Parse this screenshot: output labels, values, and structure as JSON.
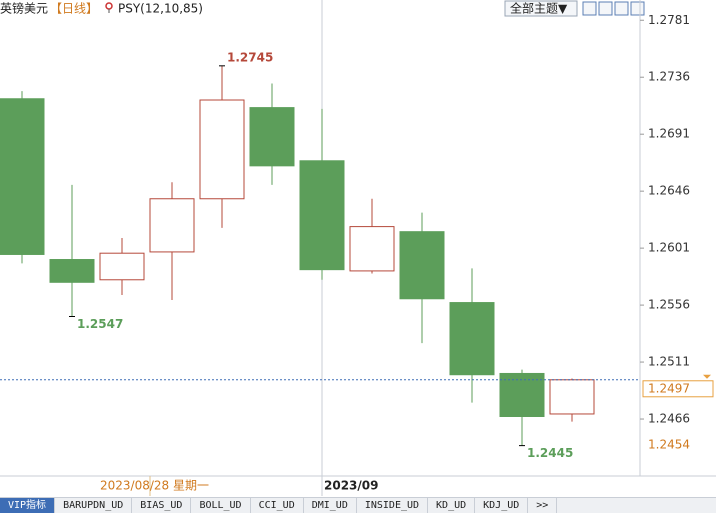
{
  "toolbar": {
    "title": "英镑美元",
    "period": "【日线】",
    "indicator": "PSY(12,10,85)",
    "theme_button": "全部主题▼"
  },
  "tabs": [
    "VIP指标",
    "BARUPDN_UD",
    "BIAS_UD",
    "BOLL_UD",
    "CCI_UD",
    "DMI_UD",
    "INSIDE_UD",
    "KD_UD",
    "KDJ_UD",
    ">>"
  ],
  "chart_data": {
    "type": "candlestick",
    "categories": [
      null,
      null,
      null,
      null,
      null,
      null,
      "2023/09",
      null,
      null,
      null,
      null,
      null
    ],
    "open": [
      1.2719,
      1.2592,
      1.2576,
      1.2598,
      1.264,
      1.2712,
      1.267,
      1.2583,
      1.2614,
      1.2558,
      1.2502,
      1.247
    ],
    "high": [
      1.2725,
      1.2651,
      1.2609,
      1.2653,
      1.2745,
      1.2731,
      1.2711,
      1.264,
      1.2629,
      1.2585,
      1.2505,
      1.2498
    ],
    "low": [
      1.2589,
      1.2547,
      1.2564,
      1.256,
      1.2617,
      1.2651,
      1.2576,
      1.2581,
      1.2526,
      1.2479,
      1.2445,
      1.2464
    ],
    "close": [
      1.2596,
      1.2574,
      1.2597,
      1.264,
      1.2718,
      1.2666,
      1.2584,
      1.2618,
      1.2561,
      1.2501,
      1.2468,
      1.2497
    ],
    "up_color": "#b5483a",
    "down_color": "#5c9e5a",
    "ylim": [
      1.2421,
      1.2797
    ],
    "yticks": [
      1.2466,
      1.2511,
      1.2556,
      1.2601,
      1.2646,
      1.2691,
      1.2736,
      1.2781
    ],
    "grid": false,
    "cursor_date": "2023/08/28 星期一",
    "cursor_price": 1.2454
  }
}
